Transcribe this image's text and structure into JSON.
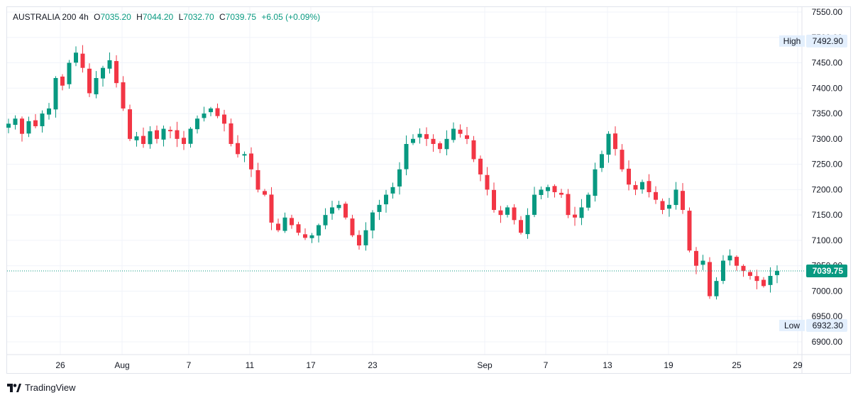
{
  "legend": {
    "symbol": "AUSTRALIA 200",
    "interval": "4h",
    "open_label": "O",
    "open": "7035.20",
    "high_label": "H",
    "high": "7044.20",
    "low_label": "L",
    "low": "7032.70",
    "close_label": "C",
    "close": "7039.75",
    "change": "+6.05 (+0.09%)"
  },
  "price_axis": {
    "ticks": [
      "7550.00",
      "7500.00",
      "7450.00",
      "7400.00",
      "7350.00",
      "7300.00",
      "7250.00",
      "7200.00",
      "7150.00",
      "7100.00",
      "7050.00",
      "7000.00",
      "6950.00",
      "6900.00"
    ],
    "high_tag": {
      "label": "High",
      "value": "7492.90"
    },
    "low_tag": {
      "label": "Low",
      "value": "6932.30"
    },
    "last_price": "7039.75"
  },
  "time_axis": {
    "ticks": [
      "26",
      "Aug",
      "7",
      "11",
      "17",
      "23",
      "Sep",
      "7",
      "13",
      "19",
      "25",
      "29"
    ]
  },
  "colors": {
    "up": "#089981",
    "down": "#f23645",
    "grid": "#f0f3fa",
    "text": "#131722"
  },
  "branding": {
    "name": "TradingView",
    "icon": "tradingview-logo-icon"
  },
  "chart_data": {
    "type": "candlestick",
    "symbol": "AUSTRALIA 200",
    "interval": "4h",
    "ylim": [
      6880,
      7560
    ],
    "last_price": 7039.75,
    "period_high": 7492.9,
    "period_low": 6932.3,
    "x_ticks": [
      "26",
      "Aug",
      "7",
      "11",
      "17",
      "23",
      "Sep",
      "7",
      "13",
      "19",
      "25",
      "29"
    ],
    "closes": [
      7330,
      7340,
      7310,
      7335,
      7325,
      7350,
      7360,
      7420,
      7405,
      7450,
      7470,
      7440,
      7390,
      7420,
      7440,
      7455,
      7410,
      7360,
      7300,
      7305,
      7290,
      7315,
      7300,
      7320,
      7315,
      7300,
      7290,
      7320,
      7340,
      7350,
      7360,
      7345,
      7330,
      7290,
      7270,
      7270,
      7240,
      7200,
      7190,
      7135,
      7120,
      7145,
      7130,
      7115,
      7105,
      7110,
      7130,
      7150,
      7165,
      7170,
      7145,
      7110,
      7090,
      7120,
      7155,
      7170,
      7190,
      7205,
      7240,
      7290,
      7300,
      7310,
      7300,
      7290,
      7280,
      7300,
      7320,
      7310,
      7300,
      7260,
      7230,
      7200,
      7160,
      7150,
      7165,
      7140,
      7115,
      7150,
      7190,
      7200,
      7205,
      7195,
      7190,
      7150,
      7145,
      7165,
      7190,
      7240,
      7270,
      7310,
      7280,
      7240,
      7210,
      7200,
      7215,
      7195,
      7180,
      7160,
      7170,
      7200,
      7160,
      7080,
      7050,
      7060,
      6990,
      7020,
      7060,
      7070,
      7050,
      7040,
      7030,
      7020,
      7010,
      7030,
      7039.75
    ]
  }
}
